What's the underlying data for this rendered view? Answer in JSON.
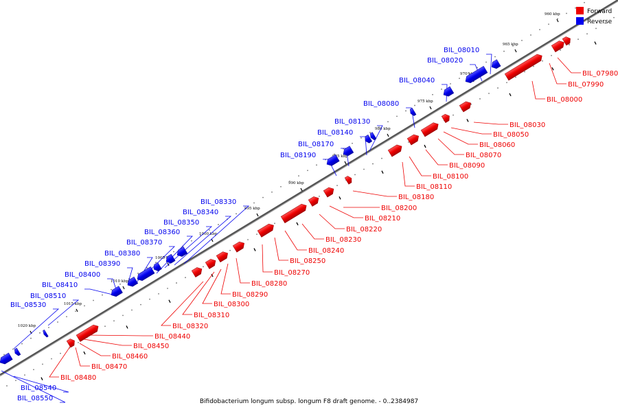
{
  "caption": "Bifidobacterium longum subsp. longum F8 draft genome. - 0..2384987",
  "legend": [
    {
      "label": "Forward",
      "color": "#ee0000"
    },
    {
      "label": "Reverse",
      "color": "#0000ee"
    }
  ],
  "ticks": [
    "960 kbp",
    "965 kbp",
    "970 kbp",
    "975 kbp",
    "980 kbp",
    "985 kbp",
    "990 kbp",
    "995 kbp",
    "1000 kbp",
    "1005 kbp",
    "1010 kbp",
    "1015 kbp",
    "1020 kbp"
  ],
  "genes": {
    "forward": [
      "BIL_07980",
      "BIL_07990",
      "BIL_08000",
      "BIL_08030",
      "BIL_08050",
      "BIL_08060",
      "BIL_08070",
      "BIL_08090",
      "BIL_08100",
      "BIL_08110",
      "BIL_08180",
      "BIL_08200",
      "BIL_08210",
      "BIL_08220",
      "BIL_08230",
      "BIL_08240",
      "BIL_08250",
      "BIL_08270",
      "BIL_08280",
      "BIL_08290",
      "BIL_08300",
      "BIL_08310",
      "BIL_08320",
      "BIL_08440",
      "BIL_08450",
      "BIL_08460",
      "BIL_08470",
      "BIL_08480"
    ],
    "reverse": [
      "BIL_08010",
      "BIL_08020",
      "BIL_08040",
      "BIL_08080",
      "BIL_08130",
      "BIL_08140",
      "BIL_08170",
      "BIL_08190",
      "BIL_08330",
      "BIL_08340",
      "BIL_08350",
      "BIL_08360",
      "BIL_08370",
      "BIL_08380",
      "BIL_08390",
      "BIL_08400",
      "BIL_08410",
      "BIL_08510",
      "BIL_08530",
      "BIL_08540",
      "BIL_08550"
    ]
  },
  "colors": {
    "forward": "#ee0000",
    "reverse": "#0000ee",
    "axis": "#555555"
  }
}
